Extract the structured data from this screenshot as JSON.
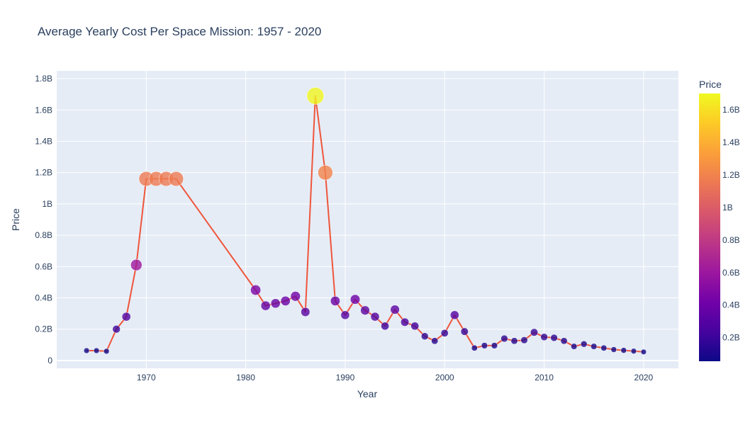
{
  "chart_data": {
    "type": "scatter",
    "title": "Average Yearly Cost Per Space Mission: 1957 - 2020",
    "xlabel": "Year",
    "ylabel": "Price",
    "xlim": [
      1961,
      2023.5
    ],
    "ylim": [
      -50000000,
      1850000000
    ],
    "x_ticks": [
      1970,
      1980,
      1990,
      2000,
      2010,
      2020
    ],
    "x_tick_labels": [
      "1970",
      "1980",
      "1990",
      "2000",
      "2010",
      "2020"
    ],
    "y_ticks": [
      0,
      200000000,
      400000000,
      600000000,
      800000000,
      1000000000,
      1200000000,
      1400000000,
      1600000000,
      1800000000
    ],
    "y_tick_labels": [
      "0",
      "0.2B",
      "0.4B",
      "0.6B",
      "0.8B",
      "1B",
      "1.2B",
      "1.4B",
      "1.6B",
      "1.8B"
    ],
    "line_color": "#ef553b",
    "plot_bg": "#e5ecf6",
    "grid": true,
    "colorbar": {
      "title": "Price",
      "range": [
        55000000,
        1700000000
      ],
      "ticks": [
        200000000,
        400000000,
        600000000,
        800000000,
        1000000000,
        1200000000,
        1400000000,
        1600000000
      ],
      "tick_labels": [
        "0.2B",
        "0.4B",
        "0.6B",
        "0.8B",
        "1B",
        "1.2B",
        "1.4B",
        "1.6B"
      ],
      "colorscale": [
        "#0d0887",
        "#46039f",
        "#7201a8",
        "#9c179e",
        "#bd3786",
        "#d8576b",
        "#ed7953",
        "#fb9f3a",
        "#fdca26",
        "#f0f921"
      ]
    },
    "x": [
      1964,
      1965,
      1966,
      1967,
      1968,
      1969,
      1970,
      1971,
      1972,
      1973,
      1981,
      1982,
      1983,
      1984,
      1985,
      1986,
      1987,
      1988,
      1989,
      1990,
      1991,
      1992,
      1993,
      1994,
      1995,
      1996,
      1997,
      1998,
      1999,
      2000,
      2001,
      2002,
      2003,
      2004,
      2005,
      2006,
      2007,
      2008,
      2009,
      2010,
      2011,
      2012,
      2013,
      2014,
      2015,
      2016,
      2017,
      2018,
      2019,
      2020
    ],
    "y": [
      63000000,
      63000000,
      59000000,
      200000000,
      280000000,
      610000000,
      1160000000,
      1160000000,
      1160000000,
      1160000000,
      450000000,
      350000000,
      365000000,
      380000000,
      410000000,
      310000000,
      1690000000,
      1200000000,
      380000000,
      290000000,
      390000000,
      320000000,
      280000000,
      220000000,
      325000000,
      245000000,
      220000000,
      155000000,
      125000000,
      175000000,
      290000000,
      185000000,
      80000000,
      95000000,
      95000000,
      140000000,
      125000000,
      130000000,
      180000000,
      150000000,
      145000000,
      125000000,
      90000000,
      105000000,
      90000000,
      80000000,
      70000000,
      65000000,
      60000000,
      55000000
    ]
  }
}
